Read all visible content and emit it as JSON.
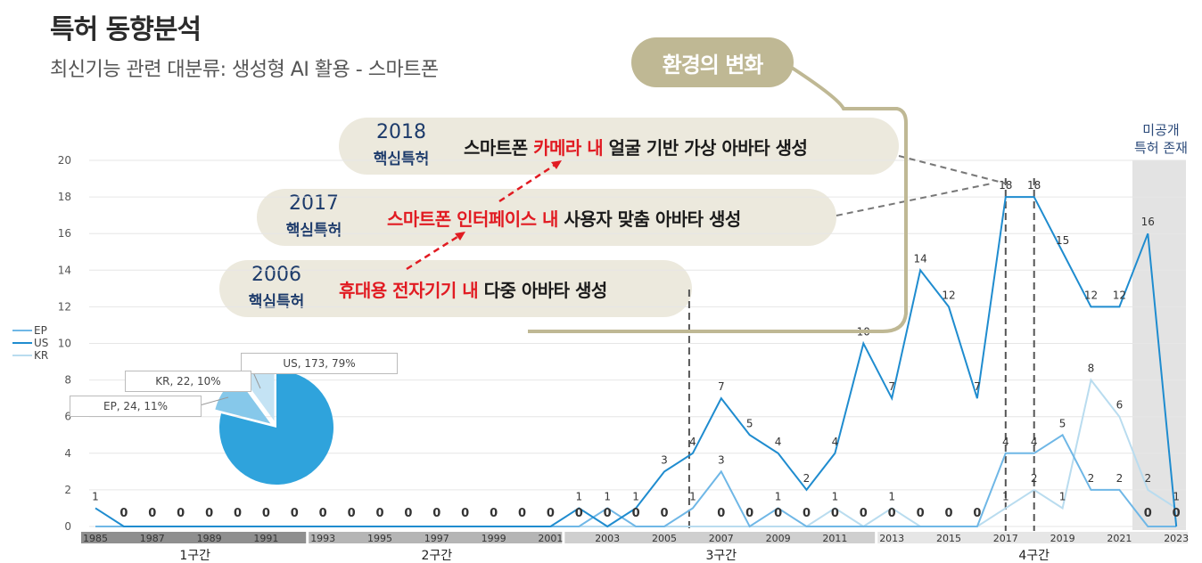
{
  "page": {
    "title": "특허 동향분석",
    "subtitle": "최신기능 관련 대분류: 생성형 AI 활용 - 스마트폰",
    "environment_label": "환경의 변화",
    "unpublished_note": [
      "미공개",
      "특허 존재"
    ]
  },
  "callouts": [
    {
      "year": "2018",
      "badge": "핵심특허",
      "desc_pre": "스마트폰 ",
      "desc_hl": "카메라 내",
      "desc_post": " 얼굴 기반 가상 아바타 생성"
    },
    {
      "year": "2017",
      "badge": "핵심특허",
      "desc_pre": "",
      "desc_hl": "스마트폰 인터페이스 내",
      "desc_post": " 사용자 맞춤 아바타 생성"
    },
    {
      "year": "2006",
      "badge": "핵심특허",
      "desc_pre": "",
      "desc_hl": "휴대용 전자기기 내",
      "desc_post": " 다중 아바타 생성"
    }
  ],
  "legend": [
    {
      "name": "EP",
      "color": "#6fb7e6"
    },
    {
      "name": "US",
      "color": "#1f8ccf"
    },
    {
      "name": "KR",
      "color": "#b9dcef"
    }
  ],
  "pie": {
    "labels": [
      "US, 173, 79%",
      "KR, 22, 10%",
      "EP, 24, 11%"
    ]
  },
  "periods": [
    "1구간",
    "2구간",
    "3구간",
    "4구간"
  ],
  "chart_data": [
    {
      "type": "line",
      "x": [
        "1985",
        "1986",
        "1987",
        "1988",
        "1989",
        "1990",
        "1991",
        "1992",
        "1993",
        "1994",
        "1995",
        "1996",
        "1997",
        "1998",
        "1999",
        "2000",
        "2001",
        "2002",
        "2003",
        "2004",
        "2005",
        "2006",
        "2007",
        "2008",
        "2009",
        "2010",
        "2011",
        "2012",
        "2013",
        "2014",
        "2015",
        "2016",
        "2017",
        "2018",
        "2019",
        "2020",
        "2021",
        "2022",
        "2023"
      ],
      "x_tick_labels": [
        "1985",
        "1987",
        "1989",
        "1991",
        "1993",
        "1995",
        "1997",
        "1999",
        "2001",
        "2003",
        "2005",
        "2007",
        "2009",
        "2011",
        "2013",
        "2015",
        "2017",
        "2019",
        "2021",
        "2023"
      ],
      "ylim": [
        0,
        20
      ],
      "y_ticks": [
        0,
        2,
        4,
        6,
        8,
        10,
        12,
        14,
        16,
        18,
        20
      ],
      "series": [
        {
          "name": "US",
          "color": "#1f8ccf",
          "values": [
            1,
            0,
            0,
            0,
            0,
            0,
            0,
            0,
            0,
            0,
            0,
            0,
            0,
            0,
            0,
            0,
            0,
            1,
            0,
            1,
            3,
            4,
            7,
            5,
            4,
            2,
            4,
            10,
            7,
            14,
            12,
            7,
            18,
            18,
            15,
            12,
            12,
            16,
            0
          ]
        },
        {
          "name": "EP",
          "color": "#6fb7e6",
          "values": [
            0,
            0,
            0,
            0,
            0,
            0,
            0,
            0,
            0,
            0,
            0,
            0,
            0,
            0,
            0,
            0,
            0,
            0,
            1,
            0,
            0,
            1,
            3,
            0,
            1,
            0,
            0,
            0,
            0,
            0,
            0,
            0,
            4,
            4,
            5,
            2,
            2,
            0,
            0
          ]
        },
        {
          "name": "KR",
          "color": "#b9dcef",
          "values": [
            0,
            0,
            0,
            0,
            0,
            0,
            0,
            0,
            0,
            0,
            0,
            0,
            0,
            0,
            0,
            0,
            0,
            0,
            0,
            0,
            0,
            0,
            0,
            0,
            0,
            0,
            1,
            0,
            1,
            0,
            0,
            0,
            1,
            2,
            1,
            8,
            6,
            2,
            1
          ]
        }
      ],
      "data_labels": [
        {
          "year": "1985",
          "text": "1"
        },
        {
          "year": "1986",
          "text": "0"
        },
        {
          "year": "1987",
          "text": "0"
        },
        {
          "year": "1988",
          "text": "0"
        },
        {
          "year": "1989",
          "text": "0"
        },
        {
          "year": "1990",
          "text": "0"
        },
        {
          "year": "1991",
          "text": "0"
        },
        {
          "year": "1992",
          "text": "0"
        },
        {
          "year": "1993",
          "text": "0"
        },
        {
          "year": "1994",
          "text": "0"
        },
        {
          "year": "1995",
          "text": "0"
        },
        {
          "year": "1996",
          "text": "0"
        },
        {
          "year": "1997",
          "text": "0"
        },
        {
          "year": "1998",
          "text": "0"
        },
        {
          "year": "1999",
          "text": "0"
        },
        {
          "year": "2000",
          "text": "0"
        },
        {
          "year": "2001",
          "text": "0"
        },
        {
          "year": "2002",
          "text": "1"
        },
        {
          "year": "2002",
          "text": "0"
        },
        {
          "year": "2003",
          "text": "1"
        },
        {
          "year": "2003",
          "text": "0"
        },
        {
          "year": "2004",
          "text": "1"
        },
        {
          "year": "2004",
          "text": "0"
        },
        {
          "year": "2005",
          "text": "3"
        },
        {
          "year": "2005",
          "text": "0"
        },
        {
          "year": "2006",
          "text": "4"
        },
        {
          "year": "2006",
          "text": "1"
        },
        {
          "year": "2007",
          "text": "7"
        },
        {
          "year": "2007",
          "text": "3"
        },
        {
          "year": "2007",
          "text": "0"
        },
        {
          "year": "2008",
          "text": "5"
        },
        {
          "year": "2008",
          "text": "0"
        },
        {
          "year": "2009",
          "text": "4"
        },
        {
          "year": "2009",
          "text": "1"
        },
        {
          "year": "2009",
          "text": "0"
        },
        {
          "year": "2010",
          "text": "2"
        },
        {
          "year": "2010",
          "text": "0"
        },
        {
          "year": "2011",
          "text": "4"
        },
        {
          "year": "2011",
          "text": "1"
        },
        {
          "year": "2011",
          "text": "0"
        },
        {
          "year": "2012",
          "text": "10"
        },
        {
          "year": "2012",
          "text": "0"
        },
        {
          "year": "2013",
          "text": "7"
        },
        {
          "year": "2013",
          "text": "1"
        },
        {
          "year": "2013",
          "text": "0"
        },
        {
          "year": "2014",
          "text": "14"
        },
        {
          "year": "2014",
          "text": "0"
        },
        {
          "year": "2015",
          "text": "12"
        },
        {
          "year": "2015",
          "text": "0"
        },
        {
          "year": "2016",
          "text": "7"
        },
        {
          "year": "2016",
          "text": "0"
        },
        {
          "year": "2017",
          "text": "18"
        },
        {
          "year": "2017",
          "text": "4"
        },
        {
          "year": "2017",
          "text": "1"
        },
        {
          "year": "2018",
          "text": "18"
        },
        {
          "year": "2018",
          "text": "4"
        },
        {
          "year": "2018",
          "text": "2"
        },
        {
          "year": "2019",
          "text": "15"
        },
        {
          "year": "2019",
          "text": "5"
        },
        {
          "year": "2019",
          "text": "1"
        },
        {
          "year": "2020",
          "text": "12"
        },
        {
          "year": "2020",
          "text": "8"
        },
        {
          "year": "2020",
          "text": "2"
        },
        {
          "year": "2021",
          "text": "12"
        },
        {
          "year": "2021",
          "text": "6"
        },
        {
          "year": "2021",
          "text": "2"
        },
        {
          "year": "2022",
          "text": "16"
        },
        {
          "year": "2022",
          "text": "2"
        },
        {
          "year": "2022",
          "text": "0"
        },
        {
          "year": "2023",
          "text": "1"
        },
        {
          "year": "2023",
          "text": "0"
        }
      ]
    },
    {
      "type": "pie",
      "slices": [
        {
          "name": "US",
          "value": 173,
          "percent": 79,
          "color": "#2fa3dc"
        },
        {
          "name": "EP",
          "value": 24,
          "percent": 11,
          "color": "#86c8ea"
        },
        {
          "name": "KR",
          "value": 22,
          "percent": 10,
          "color": "#c4e3f4"
        }
      ]
    }
  ]
}
